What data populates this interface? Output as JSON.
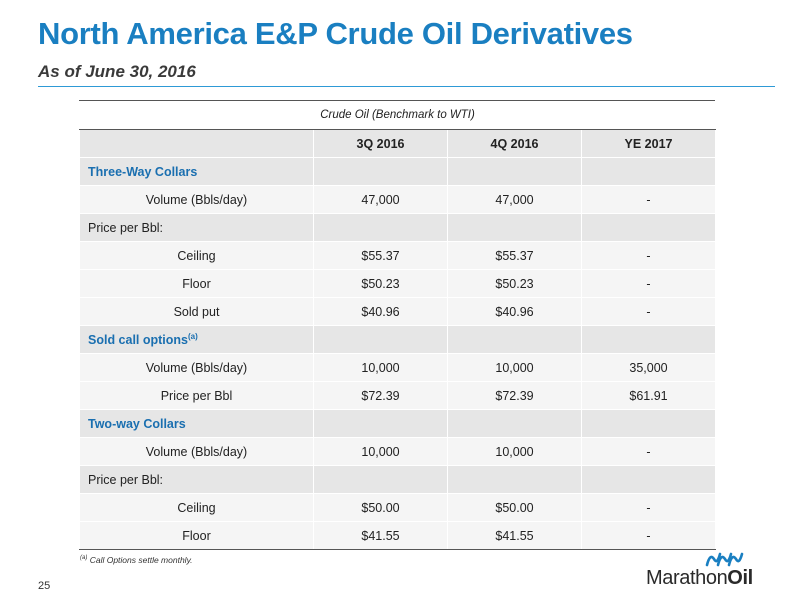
{
  "header": {
    "title": "North America E&P Crude Oil Derivatives",
    "subtitle": "As of June 30, 2016"
  },
  "table": {
    "benchmark": "Crude Oil (Benchmark to WTI)",
    "columns": [
      "3Q 2016",
      "4Q 2016",
      "YE 2017"
    ],
    "rows": [
      {
        "label": "Three-Way Collars",
        "values": [
          "",
          "",
          ""
        ]
      },
      {
        "label": "Volume (Bbls/day)",
        "values": [
          "47,000",
          "47,000",
          "-"
        ]
      },
      {
        "label": "Price per Bbl:",
        "values": [
          "",
          "",
          ""
        ]
      },
      {
        "label": "Ceiling",
        "values": [
          "$55.37",
          "$55.37",
          "-"
        ]
      },
      {
        "label": "Floor",
        "values": [
          "$50.23",
          "$50.23",
          "-"
        ]
      },
      {
        "label": "Sold put",
        "values": [
          "$40.96",
          "$40.96",
          "-"
        ]
      },
      {
        "label": "Sold call options",
        "footnote_marker": "(a)",
        "values": [
          "",
          "",
          ""
        ]
      },
      {
        "label": "Volume (Bbls/day)",
        "values": [
          "10,000",
          "10,000",
          "35,000"
        ]
      },
      {
        "label": "Price per Bbl",
        "values": [
          "$72.39",
          "$72.39",
          "$61.91"
        ]
      },
      {
        "label": "Two-way Collars",
        "values": [
          "",
          "",
          ""
        ]
      },
      {
        "label": "Volume (Bbls/day)",
        "values": [
          "10,000",
          "10,000",
          "-"
        ]
      },
      {
        "label": "Price per Bbl:",
        "values": [
          "",
          "",
          ""
        ]
      },
      {
        "label": "Ceiling",
        "values": [
          "$50.00",
          "$50.00",
          "-"
        ]
      },
      {
        "label": "Floor",
        "values": [
          "$41.55",
          "$41.55",
          "-"
        ]
      }
    ]
  },
  "footnote": {
    "marker": "(a)",
    "text": "Call Options settle monthly."
  },
  "page_number": "25",
  "logo": {
    "name_part1": "Marathon",
    "name_part2": "Oil",
    "brand_color": "#1a7fc1"
  }
}
